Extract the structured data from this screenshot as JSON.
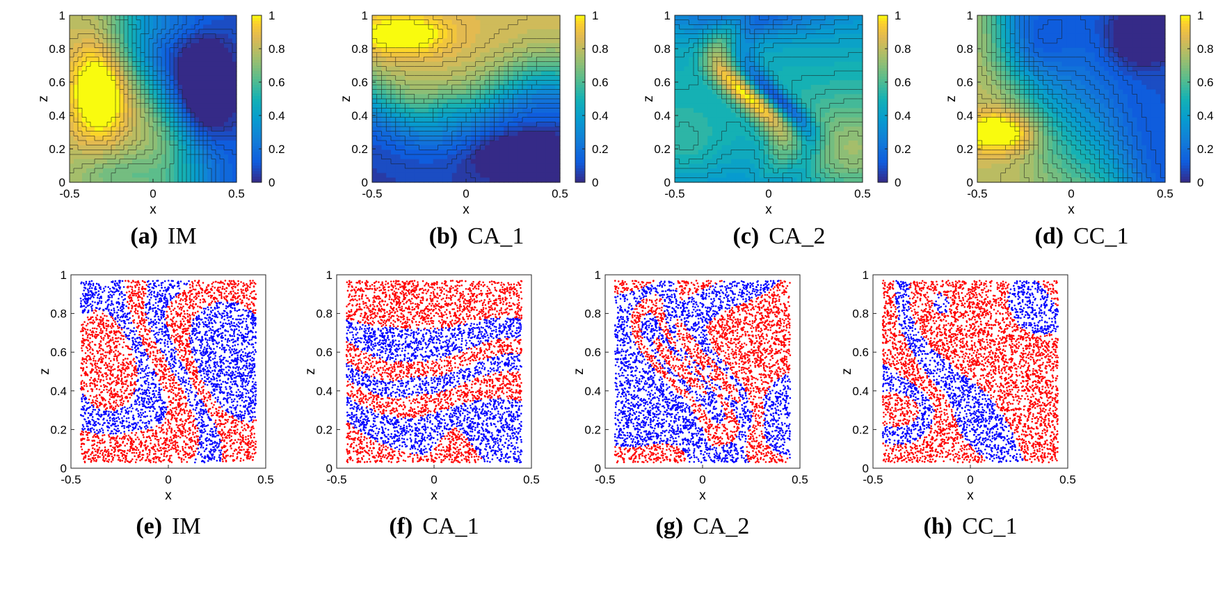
{
  "figure": {
    "panels_row1_kind": "contour",
    "panels_row2_kind": "scatter"
  },
  "chart_data": [
    {
      "id": "a",
      "type": "heatmap",
      "caption_letter": "(a)",
      "caption_name": "IM",
      "xlabel": "x",
      "ylabel": "z",
      "xlim": [
        -0.5,
        0.5
      ],
      "ylim": [
        0,
        1
      ],
      "xticks": [
        "-0.5",
        "0",
        "0.5"
      ],
      "yticks": [
        "0",
        "0.2",
        "0.4",
        "0.6",
        "0.8",
        "1"
      ],
      "colorbar": {
        "range": [
          0,
          1
        ],
        "ticks": [
          "0",
          "0.2",
          "0.4",
          "0.6",
          "0.8",
          "1"
        ],
        "colormap": "parula"
      },
      "contour_levels": 24,
      "field_seed": 1
    },
    {
      "id": "b",
      "type": "heatmap",
      "caption_letter": "(b)",
      "caption_name": "CA_1",
      "xlabel": "x",
      "ylabel": "z",
      "xlim": [
        -0.5,
        0.5
      ],
      "ylim": [
        0,
        1
      ],
      "xticks": [
        "-0.5",
        "0",
        "0.5"
      ],
      "yticks": [
        "0",
        "0.2",
        "0.4",
        "0.6",
        "0.8",
        "1"
      ],
      "colorbar": {
        "range": [
          0,
          1
        ],
        "ticks": [
          "0",
          "0.2",
          "0.4",
          "0.6",
          "0.8",
          "1"
        ],
        "colormap": "parula"
      },
      "contour_levels": 24,
      "field_seed": 2
    },
    {
      "id": "c",
      "type": "heatmap",
      "caption_letter": "(c)",
      "caption_name": "CA_2",
      "xlabel": "x",
      "ylabel": "z",
      "xlim": [
        -0.5,
        0.5
      ],
      "ylim": [
        0,
        1
      ],
      "xticks": [
        "-0.5",
        "0",
        "0.5"
      ],
      "yticks": [
        "0",
        "0.2",
        "0.4",
        "0.6",
        "0.8",
        "1"
      ],
      "colorbar": {
        "range": [
          0,
          1
        ],
        "ticks": [
          "0",
          "0.2",
          "0.4",
          "0.6",
          "0.8",
          "1"
        ],
        "colormap": "parula"
      },
      "contour_levels": 24,
      "field_seed": 3
    },
    {
      "id": "d",
      "type": "heatmap",
      "caption_letter": "(d)",
      "caption_name": "CC_1",
      "xlabel": "x",
      "ylabel": "z",
      "xlim": [
        -0.5,
        0.5
      ],
      "ylim": [
        0,
        1
      ],
      "xticks": [
        "-0.5",
        "0",
        "0.5"
      ],
      "yticks": [
        "0",
        "0.2",
        "0.4",
        "0.6",
        "0.8",
        "1"
      ],
      "colorbar": {
        "range": [
          0,
          1
        ],
        "ticks": [
          "0",
          "0.2",
          "0.4",
          "0.6",
          "0.8",
          "1"
        ],
        "colormap": "parula"
      },
      "contour_levels": 24,
      "field_seed": 4
    },
    {
      "id": "e",
      "type": "scatter",
      "caption_letter": "(e)",
      "caption_name": "IM",
      "xlabel": "x",
      "ylabel": "z",
      "xlim": [
        -0.5,
        0.5
      ],
      "ylim": [
        0,
        1
      ],
      "xticks": [
        "-0.5",
        "0",
        "0.5"
      ],
      "yticks": [
        "0",
        "0.2",
        "0.4",
        "0.6",
        "0.8",
        "1"
      ],
      "marker_colors": [
        "#ff0000",
        "#0000ff"
      ],
      "flow_seed": 1
    },
    {
      "id": "f",
      "type": "scatter",
      "caption_letter": "(f)",
      "caption_name": "CA_1",
      "xlabel": "x",
      "ylabel": "z",
      "xlim": [
        -0.5,
        0.5
      ],
      "ylim": [
        0,
        1
      ],
      "xticks": [
        "-0.5",
        "0",
        "0.5"
      ],
      "yticks": [
        "0",
        "0.2",
        "0.4",
        "0.6",
        "0.8",
        "1"
      ],
      "marker_colors": [
        "#ff0000",
        "#0000ff"
      ],
      "flow_seed": 2
    },
    {
      "id": "g",
      "type": "scatter",
      "caption_letter": "(g)",
      "caption_name": "CA_2",
      "xlabel": "x",
      "ylabel": "z",
      "xlim": [
        -0.5,
        0.5
      ],
      "ylim": [
        0,
        1
      ],
      "xticks": [
        "-0.5",
        "0",
        "0.5"
      ],
      "yticks": [
        "0",
        "0.2",
        "0.4",
        "0.6",
        "0.8",
        "1"
      ],
      "marker_colors": [
        "#ff0000",
        "#0000ff"
      ],
      "flow_seed": 3
    },
    {
      "id": "h",
      "type": "scatter",
      "caption_letter": "(h)",
      "caption_name": "CC_1",
      "xlabel": "x",
      "ylabel": "z",
      "xlim": [
        -0.5,
        0.5
      ],
      "ylim": [
        0,
        1
      ],
      "xticks": [
        "-0.5",
        "0",
        "0.5"
      ],
      "yticks": [
        "0",
        "0.2",
        "0.4",
        "0.6",
        "0.8",
        "1"
      ],
      "marker_colors": [
        "#ff0000",
        "#0000ff"
      ],
      "flow_seed": 4
    }
  ]
}
